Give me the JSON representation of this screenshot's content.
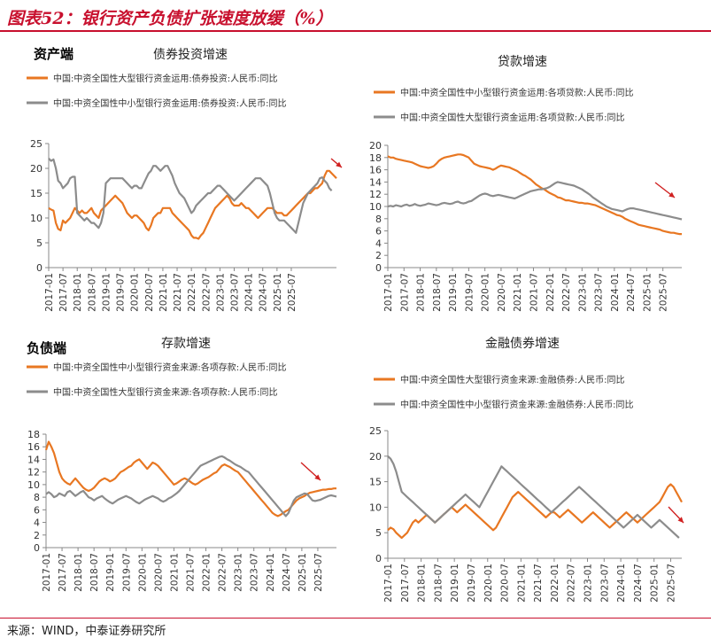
{
  "figure": {
    "title": "图表52：银行资产负债扩张速度放缓（%）",
    "source": "来源：WIND，中泰证券研究所"
  },
  "sections": {
    "assets": "资产端",
    "liabilities": "负债端"
  },
  "colors": {
    "orange": "#E87722",
    "gray": "#8C8C8C",
    "accent": "#c8102e",
    "arrow": "#d02020"
  },
  "x_ticks": [
    "2017-01",
    "2017-07",
    "2018-01",
    "2018-07",
    "2019-01",
    "2019-07",
    "2020-01",
    "2020-07",
    "2021-01",
    "2021-07",
    "2022-01",
    "2022-07",
    "2023-01",
    "2023-07",
    "2024-01",
    "2024-07",
    "2025-01",
    "2025-07"
  ],
  "chart_data": [
    {
      "type": "line",
      "title": "债券投资增速",
      "legend_placement": "top-left",
      "ylim": [
        0,
        25
      ],
      "yticks": [
        0,
        5,
        10,
        15,
        20,
        25
      ],
      "x_start": "2017-01",
      "series": [
        {
          "name": "中国:中资全国性大型银行资金运用:债券投资:人民币:同比",
          "color": "#E87722",
          "values": [
            12,
            11.7,
            11.5,
            9,
            7.8,
            7.5,
            9.5,
            9,
            9.5,
            10,
            11,
            12,
            11.5,
            11,
            11.5,
            11,
            11,
            11.5,
            12,
            11,
            10.5,
            10,
            11.5,
            12,
            12.5,
            13,
            13.5,
            14,
            14.5,
            14,
            13.5,
            13,
            12,
            11,
            10.5,
            10,
            10.5,
            10.5,
            10,
            9.5,
            9,
            8,
            7.5,
            8.5,
            10,
            10.5,
            11,
            11,
            12,
            12,
            12,
            12,
            11,
            10.5,
            10,
            9.5,
            9,
            8.5,
            8,
            7.5,
            6.5,
            6,
            6,
            5.8,
            6.5,
            7,
            8,
            9,
            10,
            11,
            12,
            12.5,
            13,
            13.5,
            14,
            14.5,
            14,
            13,
            12.5,
            12.5,
            12.5,
            13,
            12.5,
            12,
            12,
            11.5,
            11,
            10.5,
            10,
            10.5,
            11,
            11.5,
            12,
            12,
            12,
            11.5,
            11,
            11,
            11,
            10.5,
            10.5,
            11,
            11.5,
            12,
            12.5,
            13,
            13.5,
            14,
            14.5,
            15,
            15,
            15.5,
            16,
            16,
            16.5,
            17,
            18.5,
            19.5,
            19.5,
            19,
            18.5,
            18
          ]
        },
        {
          "name": "中国:中资全国性中小型银行资金运用:债券投资:人民币:同比",
          "color": "#8C8C8C",
          "values": [
            22,
            21.5,
            21.8,
            20,
            17.5,
            17,
            16,
            16.5,
            17,
            18,
            18.3,
            18.3,
            11,
            10.5,
            10,
            9.5,
            10,
            9.5,
            9,
            9,
            8.5,
            8,
            9,
            11,
            17,
            17.5,
            18,
            18,
            18,
            18,
            18,
            18,
            17.5,
            17,
            16.5,
            16,
            16.5,
            16.5,
            16,
            16,
            17,
            18,
            19,
            19.5,
            20.5,
            20.5,
            20,
            19.5,
            20,
            20.5,
            20.5,
            19.5,
            18.5,
            17,
            16,
            15,
            14.5,
            14,
            13,
            12,
            11,
            11.5,
            12.5,
            13,
            13.5,
            14,
            14.5,
            15,
            15,
            15.5,
            16,
            16.5,
            16.5,
            16,
            15.5,
            15,
            14.5,
            14,
            13.5,
            14,
            14.5,
            15,
            15.5,
            16,
            16.5,
            17,
            17.5,
            18,
            18,
            18,
            17.5,
            17,
            16.5,
            15,
            13,
            11,
            10,
            9.5,
            9.5,
            9.5,
            9,
            8.5,
            8,
            7.5,
            7,
            9,
            11,
            13,
            14,
            15,
            15.5,
            16,
            16.5,
            17,
            18,
            18.2,
            17.5,
            17,
            16,
            15.5
          ]
        }
      ]
    },
    {
      "type": "line",
      "title": "贷款增速",
      "legend_placement": "top-left",
      "ylim": [
        0,
        20
      ],
      "yticks": [
        0,
        2,
        4,
        6,
        8,
        10,
        12,
        14,
        16,
        18,
        20
      ],
      "x_start": "2017-01",
      "series": [
        {
          "name": "中国:中资全国性中小型银行资金运用:各项贷款:人民币:同比",
          "color": "#E87722",
          "values": [
            18.2,
            18,
            18,
            17.8,
            17.7,
            17.6,
            17.5,
            17.4,
            17.3,
            17.2,
            17,
            16.8,
            16.6,
            16.5,
            16.4,
            16.3,
            16.4,
            16.6,
            17,
            17.5,
            17.8,
            18,
            18.1,
            18.2,
            18.3,
            18.4,
            18.5,
            18.5,
            18.4,
            18.2,
            18,
            17.5,
            17,
            16.8,
            16.6,
            16.5,
            16.4,
            16.3,
            16.2,
            16,
            16.2,
            16.5,
            16.7,
            16.6,
            16.5,
            16.4,
            16.2,
            16,
            15.8,
            15.5,
            15.2,
            15,
            14.7,
            14.4,
            14,
            13.6,
            13.3,
            13,
            12.8,
            12.5,
            12.2,
            12,
            11.8,
            11.5,
            11.4,
            11.2,
            11,
            11,
            10.9,
            10.8,
            10.7,
            10.6,
            10.6,
            10.5,
            10.5,
            10.4,
            10.3,
            10.2,
            10,
            9.8,
            9.6,
            9.4,
            9.2,
            9,
            8.8,
            8.6,
            8.5,
            8.3,
            8,
            7.8,
            7.6,
            7.4,
            7.2,
            7,
            6.9,
            6.8,
            6.7,
            6.6,
            6.5,
            6.4,
            6.3,
            6.2,
            6,
            5.9,
            5.8,
            5.7,
            5.7,
            5.6,
            5.5,
            5.5
          ]
        },
        {
          "name": "中国:中资全国性大型银行资金运用:各项贷款:人民币:同比",
          "color": "#8C8C8C",
          "values": [
            10,
            10.1,
            10,
            10.2,
            10.1,
            10,
            10.2,
            10.3,
            10.1,
            10.2,
            10.4,
            10.2,
            10.1,
            10.2,
            10.3,
            10.5,
            10.4,
            10.3,
            10.2,
            10.3,
            10.5,
            10.6,
            10.5,
            10.4,
            10.5,
            10.7,
            10.8,
            10.6,
            10.5,
            10.6,
            10.8,
            10.9,
            11.2,
            11.5,
            11.8,
            12,
            12.1,
            12,
            11.8,
            11.7,
            11.8,
            11.9,
            11.8,
            11.7,
            11.6,
            11.5,
            11.4,
            11.3,
            11.5,
            11.7,
            11.9,
            12.1,
            12.3,
            12.5,
            12.6,
            12.7,
            12.8,
            12.8,
            12.9,
            13,
            13.2,
            13.5,
            13.8,
            14,
            13.9,
            13.8,
            13.7,
            13.6,
            13.5,
            13.4,
            13.2,
            13,
            12.8,
            12.5,
            12.2,
            11.9,
            11.5,
            11.2,
            10.9,
            10.6,
            10.3,
            10,
            9.8,
            9.6,
            9.5,
            9.4,
            9.3,
            9.2,
            9.4,
            9.6,
            9.7,
            9.7,
            9.6,
            9.5,
            9.4,
            9.3,
            9.2,
            9.1,
            9,
            8.9,
            8.8,
            8.7,
            8.6,
            8.5,
            8.4,
            8.3,
            8.2,
            8.1,
            8,
            7.9
          ]
        }
      ]
    },
    {
      "type": "line",
      "title": "存款增速",
      "legend_placement": "top-left",
      "ylim": [
        0,
        18
      ],
      "yticks": [
        0,
        2,
        4,
        6,
        8,
        10,
        12,
        14,
        16,
        18
      ],
      "x_start": "2017-01",
      "series": [
        {
          "name": "中国:中资全国性中小型银行资金来源:各项存款:人民币:同比",
          "color": "#E87722",
          "values": [
            15.5,
            16.8,
            16,
            15,
            13.5,
            12,
            11,
            10.5,
            10.2,
            10,
            10.5,
            11,
            10.5,
            10,
            9.5,
            9.2,
            9,
            9.2,
            9.5,
            10,
            10.5,
            10.8,
            11,
            10.8,
            10.5,
            10.7,
            11,
            11.5,
            12,
            12.2,
            12.5,
            12.8,
            13,
            13.5,
            13.8,
            14,
            13.5,
            13,
            12.5,
            13,
            13.5,
            13.3,
            13,
            12.5,
            12,
            11.5,
            11,
            10.5,
            10,
            10.2,
            10.5,
            10.8,
            11,
            10.8,
            10.5,
            10.2,
            10,
            10.2,
            10.5,
            10.8,
            11,
            11.2,
            11.5,
            11.8,
            12,
            12.5,
            13,
            13.2,
            13,
            12.8,
            12.5,
            12.2,
            12,
            11.5,
            11,
            10.5,
            10,
            9.5,
            9,
            8.5,
            8,
            7.5,
            7,
            6.5,
            6,
            5.5,
            5.2,
            5,
            5.2,
            5.5,
            5.8,
            6,
            6.5,
            7,
            7.5,
            7.8,
            8,
            8.2,
            8.5,
            8.7,
            8.8,
            8.9,
            9,
            9.1,
            9.2,
            9.2,
            9.3,
            9.3,
            9.4,
            9.4
          ]
        },
        {
          "name": "中国:中资全国性大型银行资金来源:各项存款:人民币:同比",
          "color": "#8C8C8C",
          "values": [
            8.5,
            8.8,
            8.5,
            8,
            8.2,
            8.6,
            8.4,
            8.2,
            8.8,
            9,
            8.6,
            8.2,
            8.5,
            8.8,
            9,
            8.5,
            8,
            7.8,
            7.5,
            7.8,
            8,
            8.2,
            7.8,
            7.5,
            7.2,
            7,
            7.3,
            7.6,
            7.8,
            8,
            8.2,
            8,
            7.8,
            7.5,
            7.2,
            7,
            7.3,
            7.6,
            7.8,
            8,
            8.2,
            8,
            7.8,
            7.5,
            7.3,
            7.5,
            7.8,
            8,
            8.3,
            8.6,
            9,
            9.5,
            10,
            10.5,
            11,
            11.5,
            12,
            12.5,
            13,
            13.2,
            13.4,
            13.6,
            13.8,
            14,
            14.2,
            14.4,
            14.5,
            14.3,
            14,
            13.8,
            13.5,
            13.2,
            13,
            12.8,
            12.5,
            12.2,
            12,
            11.5,
            11,
            10.5,
            10,
            9.5,
            9,
            8.5,
            8,
            7.5,
            7,
            6.5,
            6,
            5.5,
            5,
            5.5,
            6.5,
            7.5,
            8,
            8.2,
            8.4,
            8.6,
            8.5,
            8,
            7.5,
            7.4,
            7.5,
            7.6,
            7.8,
            8,
            8.2,
            8.3,
            8.2,
            8.1
          ]
        }
      ]
    },
    {
      "type": "line",
      "title": "金融债券增速",
      "legend_placement": "top-left",
      "ylim": [
        0,
        25
      ],
      "yticks": [
        0,
        5,
        10,
        15,
        20,
        25
      ],
      "x_start": "2017-01",
      "series": [
        {
          "name": "中国:中资全国性大型银行资金来源:金融债券:人民币:同比",
          "color": "#E87722",
          "values": [
            5.5,
            6,
            5.7,
            5,
            4.5,
            4,
            4.5,
            5,
            6,
            7,
            7.5,
            7,
            7.5,
            8,
            8.5,
            8,
            7.5,
            7,
            7.5,
            8,
            8.5,
            9,
            9.5,
            10,
            9.5,
            9,
            9.5,
            10,
            10.5,
            10,
            9.5,
            9,
            8.5,
            8,
            7.5,
            7,
            6.5,
            6,
            5.5,
            6,
            7,
            8,
            9,
            10,
            11,
            12,
            12.5,
            13,
            12.5,
            12,
            11.5,
            11,
            10.5,
            10,
            9.5,
            9,
            8.5,
            8,
            8.5,
            9,
            9,
            8.5,
            8,
            8.5,
            9,
            9.5,
            9,
            8.5,
            8,
            7.5,
            7,
            7.5,
            8,
            8.5,
            9,
            8.5,
            8,
            7.5,
            7,
            6.5,
            6,
            6.5,
            7,
            7.5,
            8,
            8.5,
            9,
            8.5,
            8,
            7.5,
            7,
            7.5,
            8,
            8.5,
            9,
            9.5,
            10,
            10.5,
            11,
            12,
            13,
            14,
            14.5,
            14,
            13,
            12,
            11
          ]
        },
        {
          "name": "中国:中资全国性中小型银行资金来源:金融债券:人民币:同比",
          "color": "#8C8C8C",
          "values": [
            20,
            19.5,
            18.5,
            17,
            15,
            13,
            12.5,
            12,
            11.5,
            11,
            10.5,
            10,
            9.5,
            9,
            8.5,
            8,
            7.5,
            7,
            7.5,
            8,
            8.5,
            9,
            9.5,
            10,
            10.5,
            11,
            11.5,
            12,
            12.5,
            12,
            11.5,
            11,
            10.5,
            10,
            11,
            12,
            13,
            14,
            15,
            16,
            17,
            18,
            17.5,
            17,
            16.5,
            16,
            15.5,
            15,
            14.5,
            14,
            13.5,
            13,
            12.5,
            12,
            11.5,
            11,
            10.5,
            10,
            9.5,
            9,
            9.5,
            10,
            10.5,
            11,
            11.5,
            12,
            12.5,
            13,
            13.5,
            14,
            13.5,
            13,
            12.5,
            12,
            11.5,
            11,
            10.5,
            10,
            9.5,
            9,
            8.5,
            8,
            7.5,
            7,
            6.5,
            6,
            6.5,
            7,
            7.5,
            8,
            8.5,
            8,
            7.5,
            7,
            6.5,
            6,
            6.5,
            7,
            7.5,
            7,
            6.5,
            6,
            5.5,
            5,
            4.5,
            4
          ]
        }
      ]
    }
  ]
}
